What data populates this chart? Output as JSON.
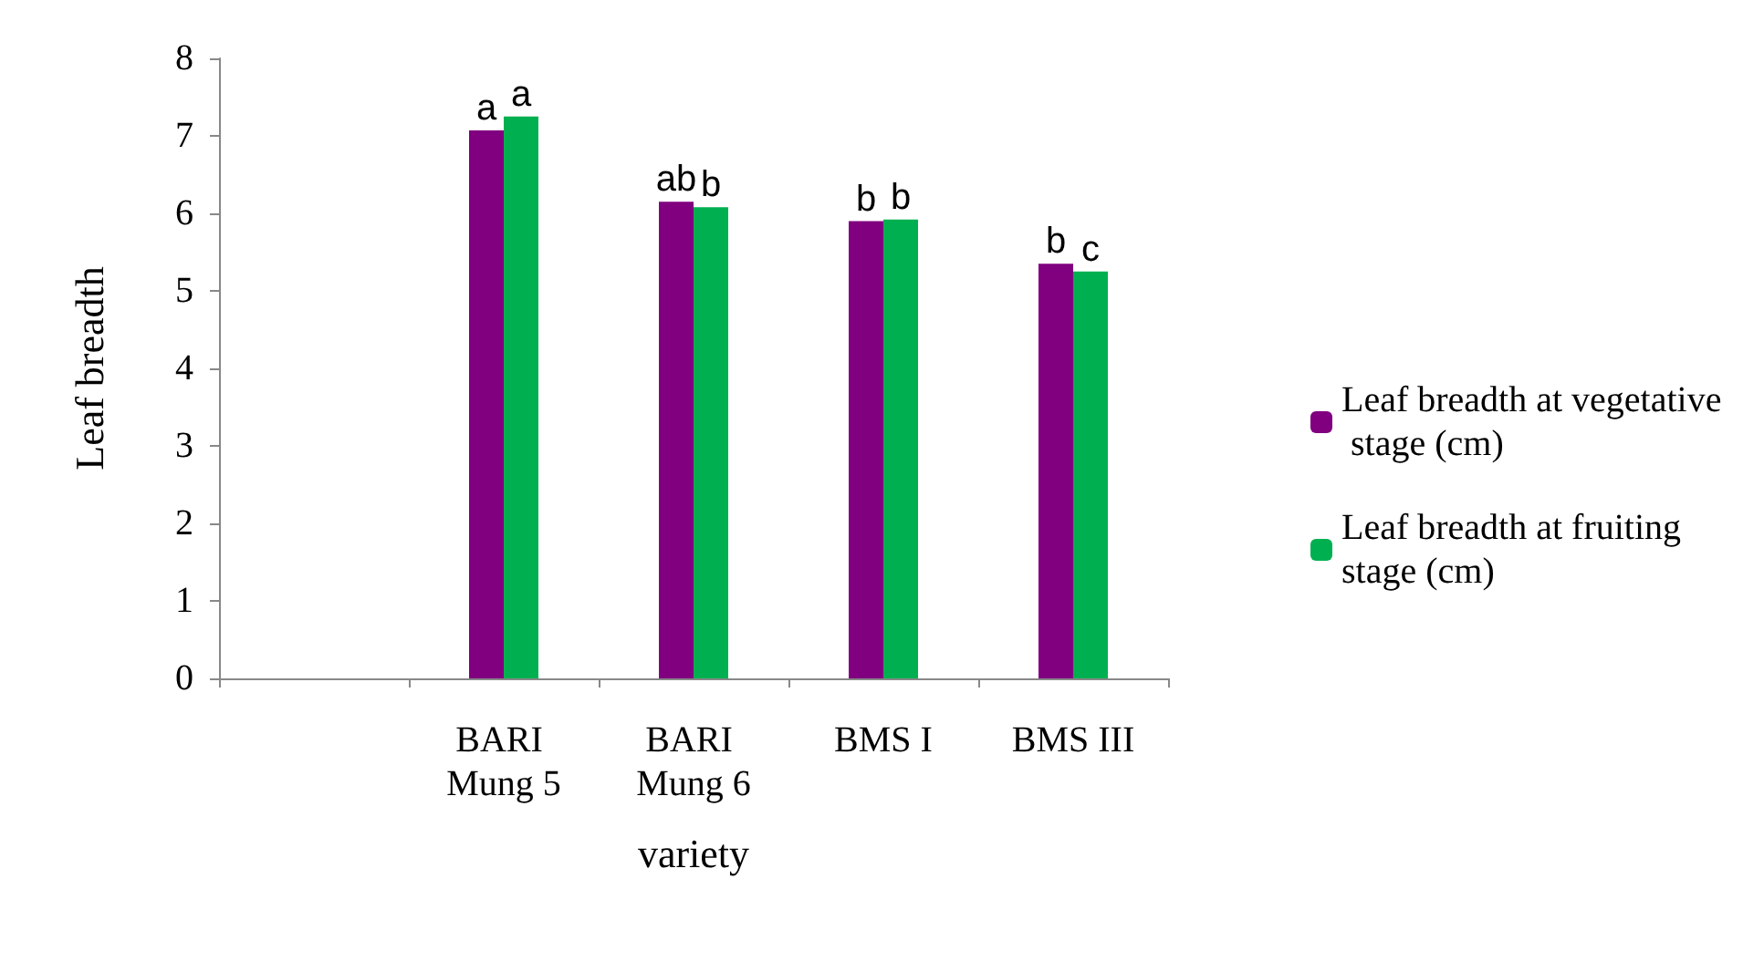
{
  "chart_data": {
    "type": "bar",
    "xlabel": "variety",
    "ylabel": "Leaf breadth",
    "categories": [
      null,
      "BARI Mung 5",
      "BARI Mung 6",
      "BMS I",
      "BMS III"
    ],
    "series": [
      {
        "name": "Leaf breadth at vegetative stage (cm)",
        "color": "#800080",
        "values": [
          null,
          7.07,
          6.15,
          5.9,
          5.35
        ],
        "value_labels": [
          null,
          "a",
          "ab",
          "b",
          "b"
        ]
      },
      {
        "name": "Leaf breadth at fruiting stage (cm)",
        "color": "#00b050",
        "values": [
          null,
          7.25,
          6.08,
          5.92,
          5.25
        ],
        "value_labels": [
          null,
          "a",
          "b",
          "b",
          "c"
        ]
      }
    ],
    "ylim": [
      0,
      8
    ],
    "yticks": [
      0,
      1,
      2,
      3,
      4,
      5,
      6,
      7,
      8
    ],
    "grid": false,
    "legend": "right"
  }
}
